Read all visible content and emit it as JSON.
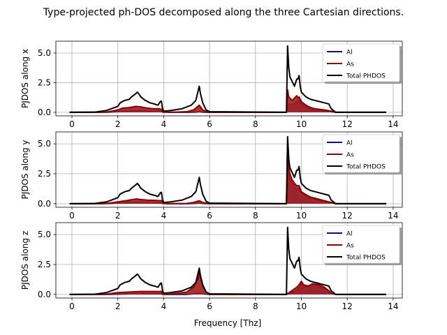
{
  "figure": {
    "title": "Type-projected ph-DOS decomposed along the three Cartesian directions.",
    "xlabel": "Frequency [Thz]"
  },
  "colors": {
    "al_line": "#0b1080",
    "al_fill": "#3e3ea8",
    "as_line": "#8b0000",
    "as_fill": "#a31e1e",
    "total_line": "#000000",
    "grid": "#b0b0b0"
  },
  "chart_data": [
    {
      "type": "area",
      "ylabel": "PJDOS along x",
      "xlim": [
        -0.7,
        14.4
      ],
      "ylim": [
        -0.3,
        6.0
      ],
      "xticks": [
        0,
        2,
        4,
        6,
        8,
        10,
        12,
        14
      ],
      "yticks": [
        0.0,
        2.5,
        5.0
      ],
      "grid": true,
      "legend_position": "top-right",
      "series": [
        {
          "name": "Al",
          "x": [
            -0.1,
            1.0,
            1.5,
            2.0,
            2.2,
            2.5,
            2.8,
            3.0,
            3.3,
            3.6,
            3.8,
            3.9,
            3.95,
            4.2,
            5.0,
            5.4,
            5.55,
            5.7,
            5.9,
            6.0,
            9.35,
            9.4,
            9.45,
            9.5,
            9.6,
            9.7,
            9.75,
            9.8,
            9.85,
            9.9,
            9.95,
            10.0,
            10.2,
            10.4,
            10.6,
            10.8,
            11.0,
            11.3,
            11.5,
            13.7
          ],
          "values": [
            0,
            0,
            0.01,
            0.05,
            0.1,
            0.12,
            0.15,
            0.14,
            0.12,
            0.1,
            0.1,
            0.08,
            0.02,
            0,
            0,
            0.02,
            0.05,
            0.02,
            0,
            0,
            0,
            0.5,
            0.6,
            0.7,
            0.65,
            0.7,
            0.8,
            0.9,
            0.95,
            1.0,
            0.85,
            0.7,
            0.5,
            0.3,
            0.2,
            0.15,
            0.1,
            0.05,
            0,
            0
          ]
        },
        {
          "name": "As",
          "x": [
            -0.1,
            1.0,
            1.5,
            2.0,
            2.2,
            2.5,
            2.8,
            3.0,
            3.3,
            3.6,
            3.8,
            3.9,
            3.95,
            4.2,
            5.0,
            5.3,
            5.55,
            5.7,
            5.9,
            6.0,
            9.35,
            9.4,
            9.45,
            9.5,
            9.6,
            9.7,
            9.75,
            9.8,
            9.85,
            9.9,
            9.95,
            10.0,
            10.2,
            10.4,
            10.6,
            10.8,
            11.0,
            11.3,
            11.5,
            13.7
          ],
          "values": [
            0,
            0,
            0.02,
            0.2,
            0.35,
            0.4,
            0.5,
            0.45,
            0.35,
            0.3,
            0.3,
            0.25,
            0.05,
            0,
            0.05,
            0.2,
            0.6,
            0.2,
            0.02,
            0,
            0,
            1.9,
            1.3,
            1.2,
            1.0,
            1.2,
            1.3,
            1.4,
            1.2,
            1.3,
            1.1,
            0.9,
            0.6,
            0.4,
            0.3,
            0.25,
            0.2,
            0.1,
            0,
            0
          ]
        },
        {
          "name": "Total PHDOS",
          "x": [
            -0.1,
            1.0,
            1.5,
            2.0,
            2.1,
            2.3,
            2.5,
            2.6,
            2.8,
            2.85,
            2.9,
            3.0,
            3.2,
            3.4,
            3.6,
            3.75,
            3.85,
            3.9,
            3.95,
            4.0,
            4.3,
            4.8,
            5.2,
            5.4,
            5.5,
            5.55,
            5.6,
            5.7,
            5.85,
            6.0,
            9.35,
            9.4,
            9.45,
            9.5,
            9.6,
            9.7,
            9.8,
            9.85,
            9.9,
            9.95,
            10.0,
            10.2,
            10.4,
            10.6,
            10.8,
            11.0,
            11.2,
            11.3,
            11.5,
            13.7
          ],
          "values": [
            0,
            0.02,
            0.15,
            0.5,
            0.8,
            1.0,
            1.1,
            1.3,
            1.6,
            1.7,
            1.6,
            1.3,
            1.0,
            0.8,
            0.7,
            0.6,
            0.9,
            0.95,
            0.3,
            0.1,
            0.15,
            0.3,
            0.6,
            1.0,
            1.8,
            2.2,
            1.6,
            0.8,
            0.2,
            0.05,
            0,
            5.6,
            3.8,
            3.0,
            2.6,
            2.2,
            2.8,
            2.8,
            3.1,
            2.2,
            1.7,
            1.3,
            1.1,
            1.0,
            0.9,
            0.8,
            0.7,
            0.3,
            0,
            0
          ]
        }
      ]
    },
    {
      "type": "area",
      "ylabel": "PJDOS along y",
      "xlim": [
        -0.7,
        14.4
      ],
      "ylim": [
        -0.3,
        6.0
      ],
      "xticks": [
        0,
        2,
        4,
        6,
        8,
        10,
        12,
        14
      ],
      "yticks": [
        0.0,
        2.5,
        5.0
      ],
      "grid": true,
      "legend_position": "top-right",
      "series": [
        {
          "name": "Al",
          "x": [
            -0.1,
            1.0,
            1.5,
            2.0,
            2.5,
            2.8,
            3.0,
            3.3,
            3.6,
            3.9,
            3.95,
            4.2,
            5.0,
            5.4,
            5.55,
            5.7,
            6.0,
            9.35,
            9.4,
            9.45,
            9.5,
            9.6,
            9.7,
            9.8,
            9.9,
            10.0,
            10.2,
            10.4,
            10.6,
            10.8,
            11.0,
            11.3,
            11.5,
            13.7
          ],
          "values": [
            0,
            0,
            0.01,
            0.05,
            0.1,
            0.12,
            0.1,
            0.08,
            0.07,
            0.06,
            0.02,
            0,
            0,
            0.03,
            0.05,
            0.02,
            0,
            0,
            3.2,
            2.5,
            2.0,
            1.7,
            1.4,
            1.2,
            1.3,
            0.9,
            0.7,
            0.5,
            0.4,
            0.3,
            0.2,
            0.1,
            0,
            0
          ]
        },
        {
          "name": "As",
          "x": [
            -0.1,
            1.0,
            1.5,
            2.0,
            2.5,
            2.8,
            3.0,
            3.3,
            3.6,
            3.9,
            3.95,
            4.2,
            5.0,
            5.3,
            5.55,
            5.7,
            6.0,
            9.35,
            9.4,
            9.45,
            9.5,
            9.6,
            9.7,
            9.8,
            9.9,
            10.0,
            10.2,
            10.4,
            10.6,
            10.8,
            11.0,
            11.3,
            11.5,
            13.7
          ],
          "values": [
            0,
            0,
            0.02,
            0.15,
            0.3,
            0.4,
            0.35,
            0.3,
            0.28,
            0.25,
            0.05,
            0,
            0.02,
            0.1,
            0.25,
            0.1,
            0,
            0,
            3.8,
            3.0,
            2.5,
            2.0,
            1.7,
            1.5,
            1.5,
            1.0,
            0.75,
            0.55,
            0.45,
            0.35,
            0.25,
            0.1,
            0,
            0
          ]
        },
        {
          "name": "Total PHDOS",
          "x": [
            -0.1,
            1.0,
            1.5,
            2.0,
            2.1,
            2.3,
            2.5,
            2.6,
            2.8,
            2.85,
            2.9,
            3.0,
            3.2,
            3.4,
            3.6,
            3.75,
            3.85,
            3.9,
            3.95,
            4.0,
            4.3,
            4.8,
            5.2,
            5.4,
            5.5,
            5.55,
            5.6,
            5.7,
            5.85,
            6.0,
            9.35,
            9.4,
            9.45,
            9.5,
            9.6,
            9.7,
            9.8,
            9.85,
            9.9,
            9.95,
            10.0,
            10.2,
            10.4,
            10.6,
            10.8,
            11.0,
            11.2,
            11.3,
            11.5,
            13.7
          ],
          "values": [
            0,
            0.02,
            0.15,
            0.5,
            0.8,
            1.0,
            1.1,
            1.3,
            1.6,
            1.7,
            1.6,
            1.3,
            1.0,
            0.8,
            0.7,
            0.6,
            0.9,
            0.95,
            0.3,
            0.1,
            0.15,
            0.3,
            0.6,
            1.0,
            1.8,
            2.2,
            1.6,
            0.8,
            0.2,
            0.05,
            0,
            5.6,
            3.8,
            3.0,
            2.6,
            2.2,
            2.8,
            2.8,
            3.1,
            2.2,
            1.7,
            1.3,
            1.1,
            1.0,
            0.9,
            0.8,
            0.7,
            0.3,
            0,
            0
          ]
        }
      ]
    },
    {
      "type": "area",
      "ylabel": "PJDOS along z",
      "xlim": [
        -0.7,
        14.4
      ],
      "ylim": [
        -0.3,
        6.0
      ],
      "xticks": [
        0,
        2,
        4,
        6,
        8,
        10,
        12,
        14
      ],
      "yticks": [
        0.0,
        2.5,
        5.0
      ],
      "grid": true,
      "legend_position": "top-right",
      "series": [
        {
          "name": "Al",
          "x": [
            -0.1,
            1.0,
            1.5,
            2.0,
            2.5,
            3.0,
            3.5,
            3.9,
            3.95,
            4.2,
            5.0,
            5.3,
            5.5,
            5.55,
            5.7,
            6.0,
            9.35,
            9.4,
            9.45,
            9.5,
            9.8,
            9.9,
            10.0,
            10.1,
            10.3,
            10.5,
            10.8,
            11.0,
            11.2,
            11.3,
            11.5,
            13.7
          ],
          "values": [
            0,
            0,
            0,
            0.02,
            0.05,
            0.05,
            0.05,
            0.05,
            0.01,
            0,
            0,
            0.05,
            0.1,
            0.1,
            0.05,
            0,
            0,
            0.05,
            0.05,
            0.1,
            0.3,
            0.6,
            0.9,
            0.7,
            0.6,
            0.8,
            0.7,
            0.5,
            0.3,
            0.1,
            0,
            0
          ]
        },
        {
          "name": "As",
          "x": [
            -0.1,
            1.0,
            1.5,
            2.0,
            2.5,
            3.0,
            3.5,
            3.9,
            3.95,
            4.2,
            5.0,
            5.3,
            5.5,
            5.55,
            5.6,
            5.7,
            5.85,
            6.0,
            9.35,
            9.4,
            9.45,
            9.5,
            9.8,
            9.9,
            10.0,
            10.1,
            10.3,
            10.5,
            10.8,
            11.0,
            11.2,
            11.3,
            11.5,
            13.7
          ],
          "values": [
            0,
            0,
            0.02,
            0.15,
            0.2,
            0.25,
            0.25,
            0.25,
            0.05,
            0,
            0.2,
            0.6,
            1.3,
            1.8,
            1.6,
            0.7,
            0.2,
            0,
            0,
            0.1,
            0.1,
            0.2,
            0.6,
            0.8,
            1.1,
            0.8,
            0.7,
            0.9,
            0.8,
            0.6,
            0.3,
            0.1,
            0,
            0
          ]
        },
        {
          "name": "Total PHDOS",
          "x": [
            -0.1,
            1.0,
            1.5,
            2.0,
            2.1,
            2.3,
            2.5,
            2.6,
            2.8,
            2.85,
            2.9,
            3.0,
            3.2,
            3.4,
            3.6,
            3.75,
            3.85,
            3.9,
            3.95,
            4.0,
            4.3,
            4.8,
            5.2,
            5.4,
            5.5,
            5.55,
            5.6,
            5.7,
            5.85,
            6.0,
            9.35,
            9.4,
            9.45,
            9.5,
            9.6,
            9.7,
            9.8,
            9.85,
            9.9,
            9.95,
            10.0,
            10.2,
            10.4,
            10.6,
            10.8,
            11.0,
            11.2,
            11.3,
            11.5,
            13.7
          ],
          "values": [
            0,
            0.02,
            0.15,
            0.5,
            0.8,
            1.0,
            1.1,
            1.3,
            1.6,
            1.7,
            1.6,
            1.3,
            1.0,
            0.8,
            0.7,
            0.6,
            0.9,
            0.95,
            0.3,
            0.1,
            0.15,
            0.3,
            0.6,
            1.0,
            1.8,
            2.2,
            1.6,
            0.8,
            0.2,
            0.05,
            0,
            5.6,
            3.8,
            3.0,
            2.6,
            2.2,
            2.8,
            2.8,
            3.1,
            2.2,
            1.7,
            1.3,
            1.1,
            1.0,
            0.9,
            0.8,
            0.7,
            0.3,
            0,
            0
          ]
        }
      ]
    }
  ]
}
